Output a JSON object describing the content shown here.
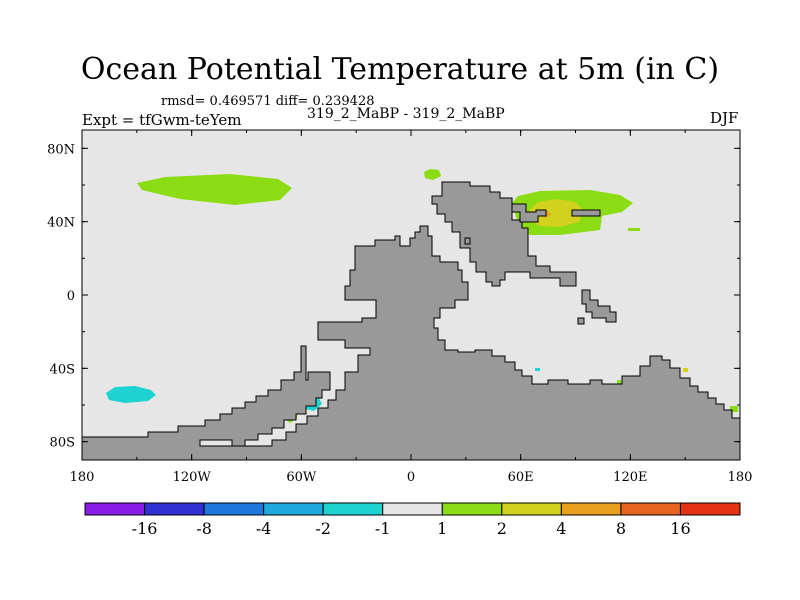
{
  "header": {
    "title": "Ocean Potential Temperature at 5m (in C)",
    "stats": "rmsd= 0.469571 diff= 0.239428",
    "diff_label": "319_2_MaBP - 319_2_MaBP",
    "experiment": "Expt = tfGwm-teYem",
    "season": "DJF"
  },
  "chart_data": {
    "type": "heatmap",
    "title": "Ocean Potential Temperature at 5m (in C)",
    "projection": "cylindrical equidistant",
    "xlim": [
      -180,
      180
    ],
    "ylim": [
      -90,
      90
    ],
    "x_ticks": [
      {
        "value": -180,
        "label": "180"
      },
      {
        "value": -120,
        "label": "120W"
      },
      {
        "value": -60,
        "label": "60W"
      },
      {
        "value": 0,
        "label": "0"
      },
      {
        "value": 60,
        "label": "60E"
      },
      {
        "value": 120,
        "label": "120E"
      },
      {
        "value": 180,
        "label": "180"
      }
    ],
    "y_ticks": [
      {
        "value": 80,
        "label": "80N"
      },
      {
        "value": 40,
        "label": "40N"
      },
      {
        "value": 0,
        "label": "0"
      },
      {
        "value": -40,
        "label": "40S"
      },
      {
        "value": -80,
        "label": "80S"
      }
    ],
    "colorbar": {
      "bins": [
        {
          "range": "< -16",
          "color": "#8a1ee6"
        },
        {
          "range": "-16 to -8",
          "color": "#2f2fd2"
        },
        {
          "range": "-8 to -4",
          "color": "#1e78dc"
        },
        {
          "range": "-4 to -2",
          "color": "#1eaadc"
        },
        {
          "range": "-2 to -1",
          "color": "#1ed2d2"
        },
        {
          "range": "-1 to 1",
          "color": "#e6e6e6"
        },
        {
          "range": "1 to 2",
          "color": "#8cdc14"
        },
        {
          "range": "2 to 4",
          "color": "#d2d21e"
        },
        {
          "range": "4 to 8",
          "color": "#e6a01e"
        },
        {
          "range": "8 to 16",
          "color": "#e6641e"
        },
        {
          "range": "> 16",
          "color": "#e63214"
        }
      ],
      "labels": [
        "-16",
        "-8",
        "-4",
        "-2",
        "-1",
        "1",
        "2",
        "4",
        "8",
        "16"
      ]
    },
    "colors": {
      "ocean_background": "#e6e6e6",
      "land": "#999999"
    },
    "regions": [
      {
        "name": "North Pacific anomaly",
        "bin": "1 to 2",
        "lon": [
          -145,
          -75
        ],
        "lat": [
          48,
          62
        ]
      },
      {
        "name": "Northwest Pacific warm patch",
        "bin": "1 to 2",
        "lon": [
          55,
          120
        ],
        "lat": [
          35,
          58
        ]
      },
      {
        "name": "Northwest Pacific warmer core",
        "bin": "2 to 4",
        "lon": [
          70,
          90
        ],
        "lat": [
          40,
          50
        ]
      },
      {
        "name": "Arctic patch",
        "bin": "1 to 2",
        "lon": [
          5,
          15
        ],
        "lat": [
          65,
          70
        ]
      },
      {
        "name": "South Pacific cool patch",
        "bin": "-2 to -1",
        "lon": [
          -165,
          -145
        ],
        "lat": [
          -57,
          -49
        ]
      },
      {
        "name": "Southern cool patch near 50W",
        "bin": "-2 to -1",
        "lon": [
          -55,
          -43
        ],
        "lat": [
          -62,
          -55
        ]
      },
      {
        "name": "Southern warm patch near 60W",
        "bin": "1 to 2",
        "lon": [
          -67,
          -58
        ],
        "lat": [
          -70,
          -64
        ]
      }
    ]
  }
}
